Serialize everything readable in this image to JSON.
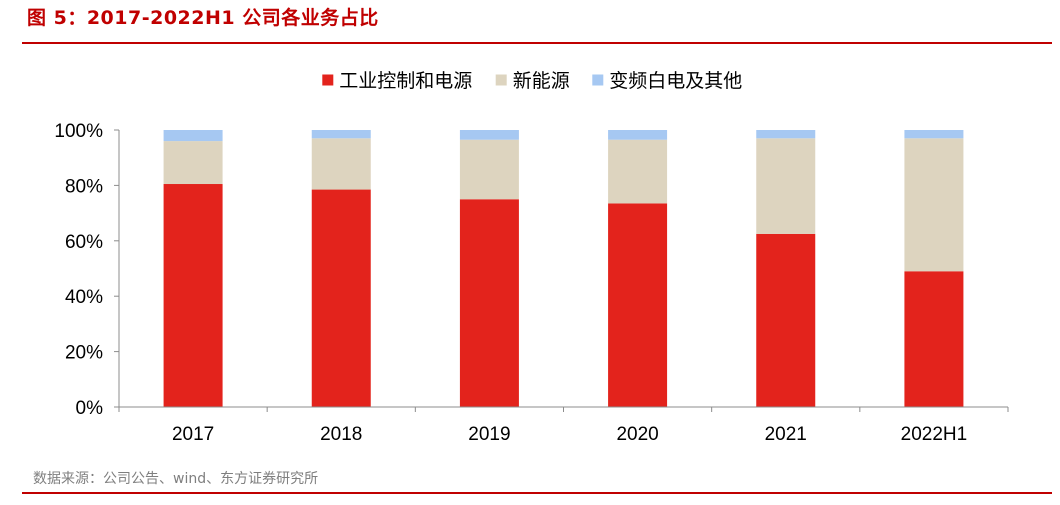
{
  "header": {
    "title": "图 5：2017-2022H1 公司各业务占比"
  },
  "footer": {
    "source": "数据来源：公司公告、wind、东方证券研究所"
  },
  "chart_data": {
    "type": "bar",
    "stacked": true,
    "title": "",
    "xlabel": "",
    "ylabel": "",
    "categories": [
      "2017",
      "2018",
      "2019",
      "2020",
      "2021",
      "2022H1"
    ],
    "series": [
      {
        "name": "工业控制和电源",
        "color": "#e3231c",
        "values": [
          80.5,
          78.5,
          75,
          73.5,
          62.5,
          49
        ]
      },
      {
        "name": "新能源",
        "color": "#ddd4bf",
        "values": [
          15.5,
          18.5,
          21.5,
          23,
          34.5,
          48
        ]
      },
      {
        "name": "变频白电及其他",
        "color": "#a6c8f2",
        "values": [
          4,
          3,
          3.5,
          3.5,
          3,
          3
        ]
      }
    ],
    "ylim": [
      0,
      100
    ],
    "yticks": [
      "0%",
      "20%",
      "40%",
      "60%",
      "80%",
      "100%"
    ],
    "legend_position": "top",
    "grid": false
  }
}
